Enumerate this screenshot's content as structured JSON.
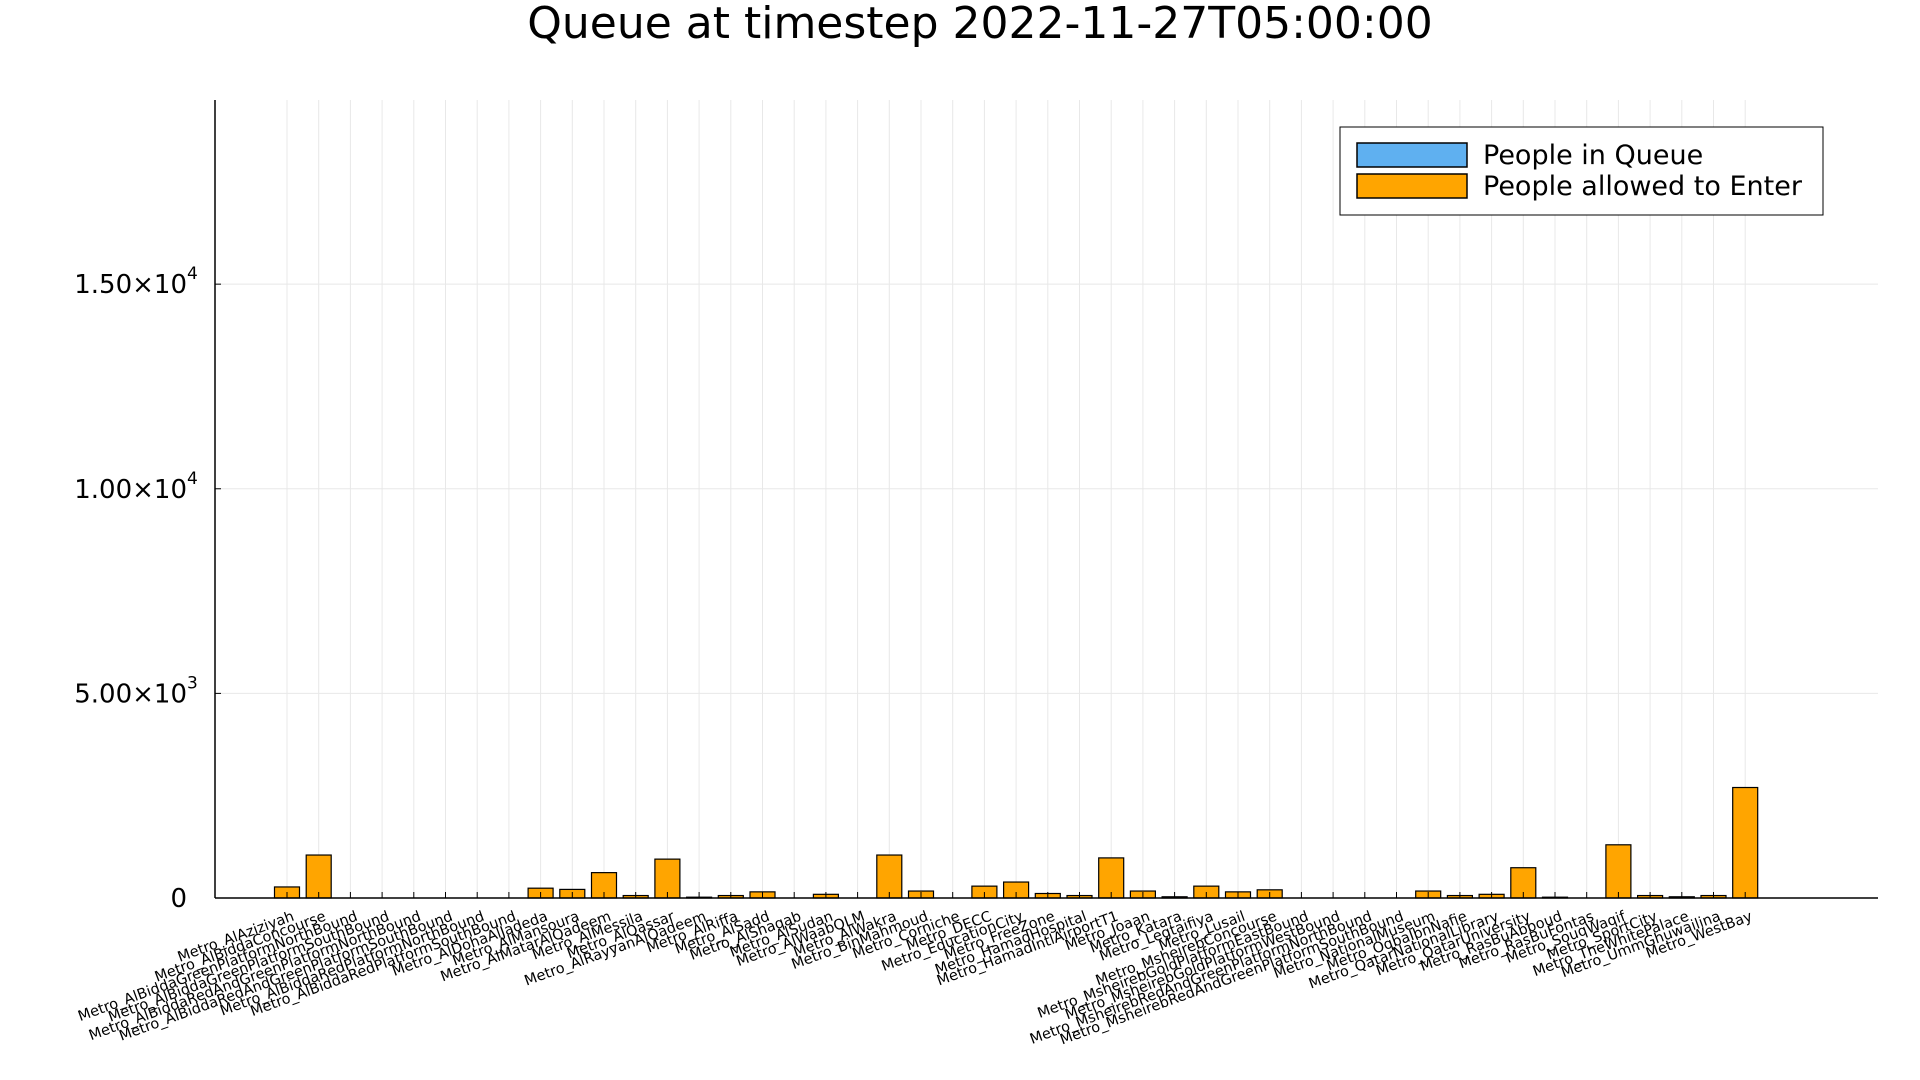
{
  "chart_data": {
    "type": "bar",
    "title": "Queue at timestep 2022-11-27T05:00:00",
    "xlabel": "",
    "ylabel": "",
    "ylim": [
      0,
      19500
    ],
    "grid": true,
    "legend_position": "top-right",
    "y_ticks": [
      {
        "value": 0,
        "mantissa": "0",
        "exp": ""
      },
      {
        "value": 5000,
        "mantissa": "5.00×10",
        "exp": "3"
      },
      {
        "value": 10000,
        "mantissa": "1.00×10",
        "exp": "4"
      },
      {
        "value": 15000,
        "mantissa": "1.50×10",
        "exp": "4"
      }
    ],
    "categories": [
      "Metro_AlAziziyah",
      "Metro_AlBiddaConcourse",
      "Metro_AlBiddaGreenPlatformNorthBound",
      "Metro_AlBiddaGreenPlatformSouthBound",
      "Metro_AlBiddaRedAndGreenPlatformNorthBound",
      "Metro_AlBiddaRedAndGreenPlatformSouthBound",
      "Metro_AlBiddaRedPlatformNorthBound",
      "Metro_AlBiddaRedPlatformSouthBound",
      "Metro_AlDohaAlJadeda",
      "Metro_AlMansoura",
      "Metro_AlMatarAlQadeem",
      "Metro_AlMessila",
      "Metro_AlQassar",
      "Metro_AlRayyanAlQadeem",
      "Metro_AlRiffa",
      "Metro_AlSadd",
      "Metro_AlShaqab",
      "Metro_AlSudan",
      "Metro_AlWaabQLM",
      "Metro_AlWakra",
      "Metro_BinMahmoud",
      "Metro_Corniche",
      "Metro_DECC",
      "Metro_EducationCity",
      "Metro_FreeZone",
      "Metro_HamadHospital",
      "Metro_HamadIntlAirportT1",
      "Metro_Joaan",
      "Metro_Katara",
      "Metro_Legtaifiya",
      "Metro_Lusail",
      "Metro_MsheirebConcourse",
      "Metro_MsheirebGoldPlatformEastBound",
      "Metro_MsheirebGoldPlatformWestBound",
      "Metro_MsheirebRedAndGreenPlatformNorthBound",
      "Metro_MsheirebRedAndGreenPlatformSouthBound",
      "Metro_NationalMuseum",
      "Metro_OqbaIbnNafie",
      "Metro_QatarNationalLibrary",
      "Metro_QatarUniversity",
      "Metro_RasBuAbboud",
      "Metro_RasBuFontas",
      "Metro_SouqWaqif",
      "Metro_SportCity",
      "Metro_TheWhitePalace",
      "Metro_UmmGhuwailina",
      "Metro_WestBay"
    ],
    "series": [
      {
        "name": "People in Queue",
        "color": "#5fb0f0",
        "values": [
          0,
          0,
          0,
          0,
          0,
          0,
          0,
          0,
          0,
          0,
          0,
          0,
          0,
          0,
          0,
          0,
          0,
          0,
          0,
          0,
          0,
          0,
          0,
          0,
          0,
          0,
          0,
          0,
          0,
          0,
          0,
          0,
          0,
          0,
          0,
          0,
          0,
          0,
          0,
          0,
          0,
          0,
          0,
          0,
          0,
          0,
          0
        ]
      },
      {
        "name": "People allowed to Enter",
        "color": "#ffa500",
        "values": [
          270,
          1050,
          0,
          0,
          0,
          0,
          0,
          0,
          240,
          210,
          620,
          60,
          950,
          20,
          60,
          150,
          0,
          90,
          0,
          1050,
          170,
          0,
          290,
          390,
          110,
          60,
          980,
          170,
          30,
          290,
          150,
          200,
          0,
          0,
          0,
          0,
          170,
          60,
          90,
          740,
          20,
          0,
          1300,
          60,
          30,
          60,
          2700
        ]
      }
    ]
  }
}
